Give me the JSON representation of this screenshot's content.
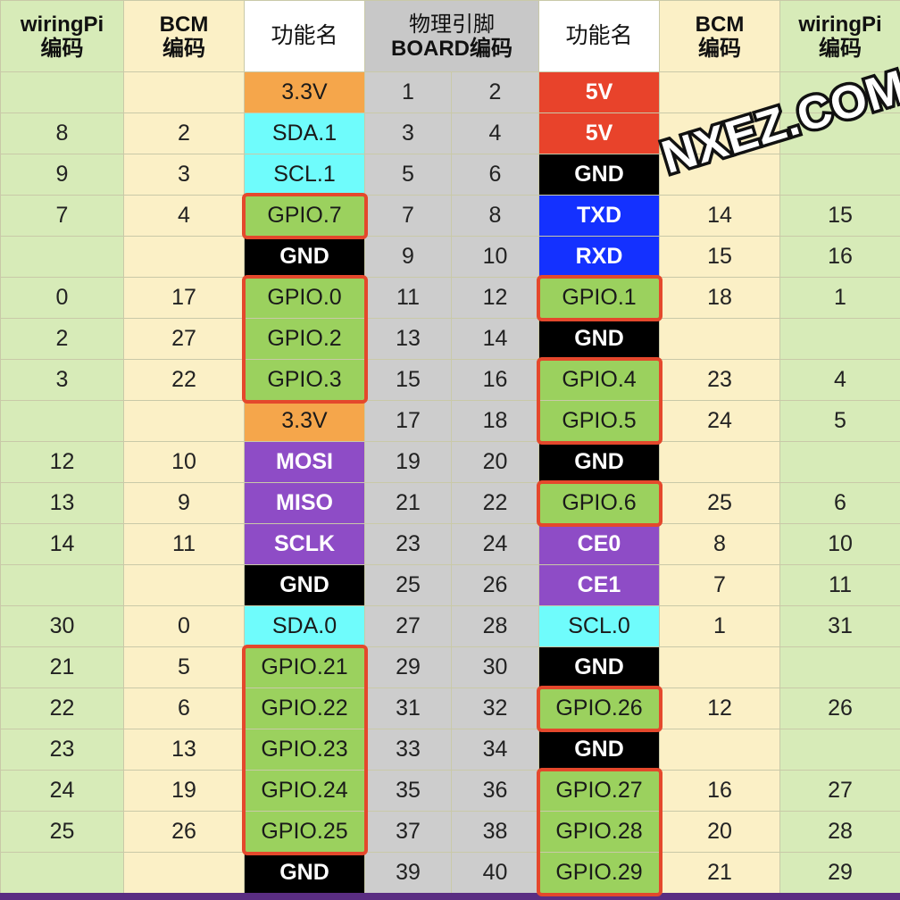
{
  "header": {
    "wpi_left": [
      "wiringPi",
      "编码"
    ],
    "bcm_left": [
      "BCM",
      "编码"
    ],
    "fn_left": "功能名",
    "phys": [
      "物理引脚",
      "BOARD编码"
    ],
    "fn_right": "功能名",
    "bcm_right": [
      "BCM",
      "编码"
    ],
    "wpi_right": [
      "wiringPi",
      "编码"
    ]
  },
  "rows": [
    {
      "wpiL": "",
      "bcmL": "",
      "fnL": "3.3V",
      "cL": "33v",
      "pL": "1",
      "pR": "2",
      "fnR": "5V",
      "cR": "5v",
      "bcmR": "",
      "wpiR": ""
    },
    {
      "wpiL": "8",
      "bcmL": "2",
      "fnL": "SDA.1",
      "cL": "i2c",
      "pL": "3",
      "pR": "4",
      "fnR": "5V",
      "cR": "5v",
      "bcmR": "",
      "wpiR": ""
    },
    {
      "wpiL": "9",
      "bcmL": "3",
      "fnL": "SCL.1",
      "cL": "i2c",
      "pL": "5",
      "pR": "6",
      "fnR": "GND",
      "cR": "gnd",
      "bcmR": "",
      "wpiR": ""
    },
    {
      "wpiL": "7",
      "bcmL": "4",
      "fnL": "GPIO.7",
      "cL": "gpio",
      "pL": "7",
      "pR": "8",
      "fnR": "TXD",
      "cR": "uart",
      "bcmR": "14",
      "wpiR": "15"
    },
    {
      "wpiL": "",
      "bcmL": "",
      "fnL": "GND",
      "cL": "gnd",
      "pL": "9",
      "pR": "10",
      "fnR": "RXD",
      "cR": "uart",
      "bcmR": "15",
      "wpiR": "16"
    },
    {
      "wpiL": "0",
      "bcmL": "17",
      "fnL": "GPIO.0",
      "cL": "gpio",
      "pL": "11",
      "pR": "12",
      "fnR": "GPIO.1",
      "cR": "gpio",
      "bcmR": "18",
      "wpiR": "1"
    },
    {
      "wpiL": "2",
      "bcmL": "27",
      "fnL": "GPIO.2",
      "cL": "gpio",
      "pL": "13",
      "pR": "14",
      "fnR": "GND",
      "cR": "gnd",
      "bcmR": "",
      "wpiR": ""
    },
    {
      "wpiL": "3",
      "bcmL": "22",
      "fnL": "GPIO.3",
      "cL": "gpio",
      "pL": "15",
      "pR": "16",
      "fnR": "GPIO.4",
      "cR": "gpio",
      "bcmR": "23",
      "wpiR": "4"
    },
    {
      "wpiL": "",
      "bcmL": "",
      "fnL": "3.3V",
      "cL": "33v",
      "pL": "17",
      "pR": "18",
      "fnR": "GPIO.5",
      "cR": "gpio",
      "bcmR": "24",
      "wpiR": "5"
    },
    {
      "wpiL": "12",
      "bcmL": "10",
      "fnL": "MOSI",
      "cL": "spi",
      "pL": "19",
      "pR": "20",
      "fnR": "GND",
      "cR": "gnd",
      "bcmR": "",
      "wpiR": ""
    },
    {
      "wpiL": "13",
      "bcmL": "9",
      "fnL": "MISO",
      "cL": "spi",
      "pL": "21",
      "pR": "22",
      "fnR": "GPIO.6",
      "cR": "gpio",
      "bcmR": "25",
      "wpiR": "6"
    },
    {
      "wpiL": "14",
      "bcmL": "11",
      "fnL": "SCLK",
      "cL": "spi",
      "pL": "23",
      "pR": "24",
      "fnR": "CE0",
      "cR": "spi",
      "bcmR": "8",
      "wpiR": "10"
    },
    {
      "wpiL": "",
      "bcmL": "",
      "fnL": "GND",
      "cL": "gnd",
      "pL": "25",
      "pR": "26",
      "fnR": "CE1",
      "cR": "spi",
      "bcmR": "7",
      "wpiR": "11"
    },
    {
      "wpiL": "30",
      "bcmL": "0",
      "fnL": "SDA.0",
      "cL": "i2c",
      "pL": "27",
      "pR": "28",
      "fnR": "SCL.0",
      "cR": "i2c",
      "bcmR": "1",
      "wpiR": "31"
    },
    {
      "wpiL": "21",
      "bcmL": "5",
      "fnL": "GPIO.21",
      "cL": "gpio",
      "pL": "29",
      "pR": "30",
      "fnR": "GND",
      "cR": "gnd",
      "bcmR": "",
      "wpiR": ""
    },
    {
      "wpiL": "22",
      "bcmL": "6",
      "fnL": "GPIO.22",
      "cL": "gpio",
      "pL": "31",
      "pR": "32",
      "fnR": "GPIO.26",
      "cR": "gpio",
      "bcmR": "12",
      "wpiR": "26"
    },
    {
      "wpiL": "23",
      "bcmL": "13",
      "fnL": "GPIO.23",
      "cL": "gpio",
      "pL": "33",
      "pR": "34",
      "fnR": "GND",
      "cR": "gnd",
      "bcmR": "",
      "wpiR": ""
    },
    {
      "wpiL": "24",
      "bcmL": "19",
      "fnL": "GPIO.24",
      "cL": "gpio",
      "pL": "35",
      "pR": "36",
      "fnR": "GPIO.27",
      "cR": "gpio",
      "bcmR": "16",
      "wpiR": "27"
    },
    {
      "wpiL": "25",
      "bcmL": "26",
      "fnL": "GPIO.25",
      "cL": "gpio",
      "pL": "37",
      "pR": "38",
      "fnR": "GPIO.28",
      "cR": "gpio",
      "bcmR": "20",
      "wpiR": "28"
    },
    {
      "wpiL": "",
      "bcmL": "",
      "fnL": "GND",
      "cL": "gnd",
      "pL": "39",
      "pR": "40",
      "fnR": "GPIO.29",
      "cR": "gpio",
      "bcmR": "21",
      "wpiR": "29"
    }
  ],
  "highlight_groups": {
    "left": [
      [
        3,
        3
      ],
      [
        5,
        7
      ],
      [
        14,
        18
      ]
    ],
    "right": [
      [
        5,
        5
      ],
      [
        7,
        8
      ],
      [
        10,
        10
      ],
      [
        15,
        15
      ],
      [
        17,
        19
      ]
    ]
  },
  "watermark": "NXEZ.COM",
  "colors": {
    "power_3v3": "#f5a64b",
    "power_5v": "#e8432b",
    "i2c": "#6ffcfc",
    "ground": "#000000",
    "uart": "#1431ff",
    "gpio": "#9bd15e",
    "spi": "#8e4cc6",
    "highlight_border": "#e4482c",
    "wiringpi_column": "#d7ebb8",
    "bcm_column": "#fbf0c6",
    "physical_column": "#cdcdcd"
  }
}
